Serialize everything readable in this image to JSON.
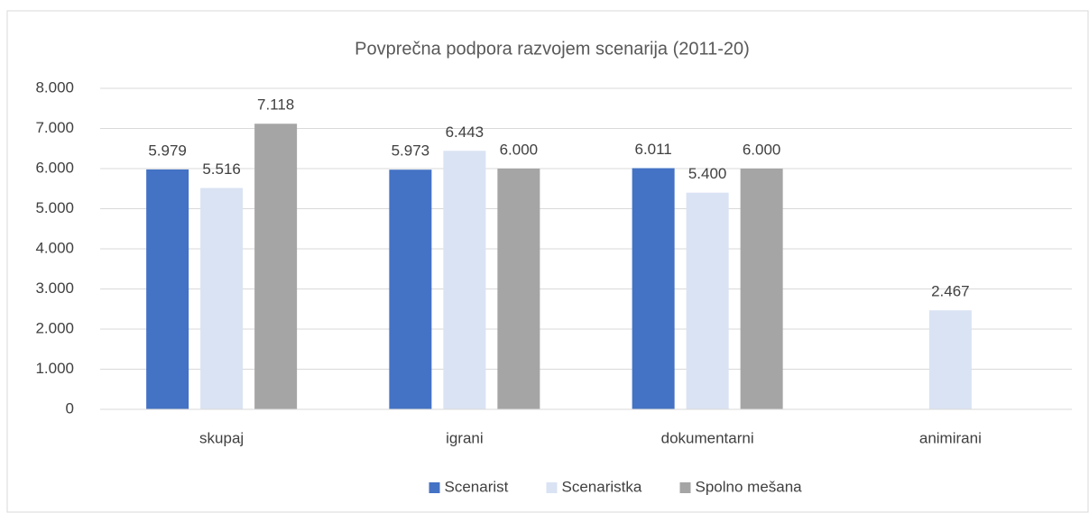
{
  "chart_data": {
    "type": "bar",
    "title": "Povprečna podpora razvojem scenarija (2011-20)",
    "categories": [
      "skupaj",
      "igrani",
      "dokumentarni",
      "animirani"
    ],
    "series": [
      {
        "name": "Scenarist",
        "color": "#4472c4",
        "values": [
          5979,
          5973,
          6011,
          null
        ],
        "value_labels": [
          "5.979",
          "5.973",
          "6.011",
          null
        ]
      },
      {
        "name": "Scenaristka",
        "color": "#dae3f3",
        "values": [
          5516,
          6443,
          5400,
          2467
        ],
        "value_labels": [
          "5.516",
          "6.443",
          "5.400",
          "2.467"
        ]
      },
      {
        "name": "Spolno mešana",
        "color": "#a5a5a5",
        "values": [
          7118,
          6000,
          6000,
          null
        ],
        "value_labels": [
          "7.118",
          "6.000",
          "6.000",
          null
        ]
      }
    ],
    "ylim": [
      0,
      8000
    ],
    "yticks": [
      0,
      {
        "value": 1000,
        "label": "1.000"
      },
      {
        "value": 2000,
        "label": "2.000"
      },
      {
        "value": 3000,
        "label": "3.000"
      },
      {
        "value": 4000,
        "label": "4.000"
      },
      {
        "value": 5000,
        "label": "5.000"
      },
      {
        "value": 6000,
        "label": "6.000"
      },
      {
        "value": 7000,
        "label": "7.000"
      },
      {
        "value": 8000,
        "label": "8.000"
      }
    ],
    "grid": true,
    "legend": "bottom"
  }
}
